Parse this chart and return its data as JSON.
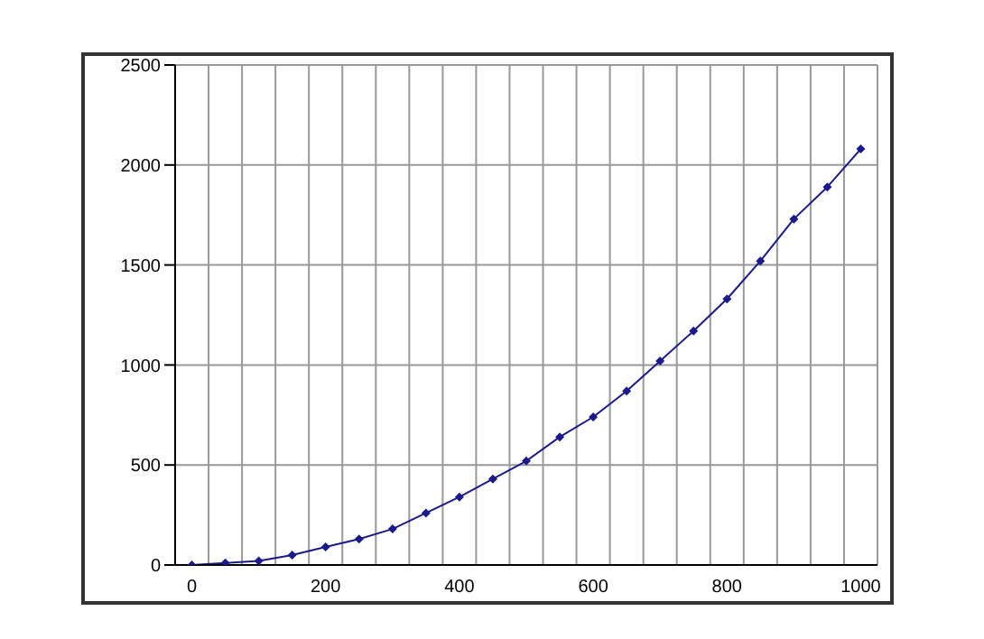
{
  "chart_data": {
    "type": "line",
    "categories": [
      "0",
      null,
      null,
      null,
      "200",
      null,
      null,
      null,
      "400",
      null,
      null,
      null,
      "600",
      null,
      null,
      null,
      "800",
      null,
      null,
      null,
      "1000"
    ],
    "series": [
      {
        "color": "#1a1a8c",
        "values": [
          0,
          10,
          20,
          50,
          90,
          130,
          180,
          260,
          340,
          430,
          520,
          640,
          740,
          870,
          1020,
          1170,
          1330,
          1520,
          1730,
          1890,
          2080
        ]
      }
    ],
    "ylim": [
      0,
      2500
    ],
    "yticks": [
      0,
      500,
      1000,
      1500,
      2000,
      2500
    ],
    "grid": true,
    "marker": "diamond",
    "line_style": "solid"
  }
}
